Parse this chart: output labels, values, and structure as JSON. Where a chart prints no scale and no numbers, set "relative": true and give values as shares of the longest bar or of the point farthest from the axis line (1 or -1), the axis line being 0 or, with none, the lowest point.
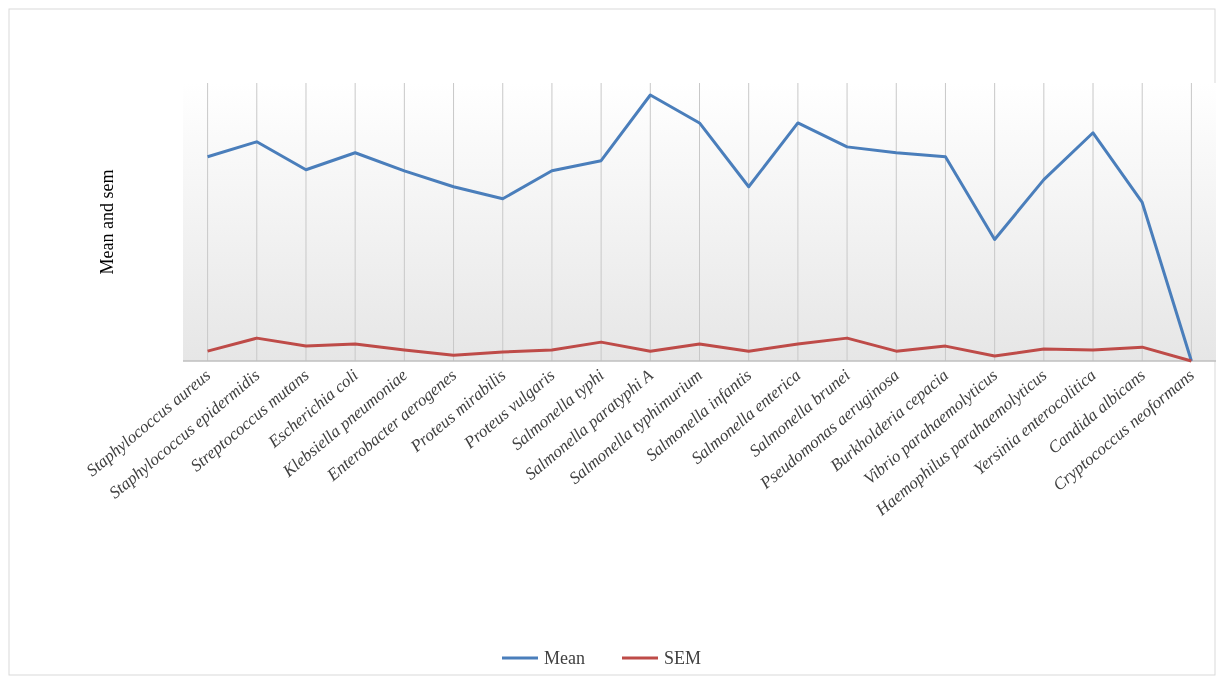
{
  "chart_data": {
    "type": "line",
    "ylabel": "Mean and sem",
    "relative": true,
    "grid": "x",
    "legend": "bottom",
    "marker": "none",
    "line_style": "solid",
    "categories": [
      "Staphylococcus aureus",
      "Staphylococcus epidermidis",
      "Streptococcus mutans",
      "Escherichia coli",
      "Klebsiella pneumoniae",
      "Enterobacter aerogenes",
      "Proteus mirabilis",
      "Proteus vulgaris",
      "Salmonella typhi",
      "Salmonella paratyphi A",
      "Salmonella typhimurium",
      "Salmonella infantis",
      "Salmonella enterica",
      "Salmonella brunei",
      "Pseudomonas aeruginosa",
      "Burkholderia cepacia",
      "Vibrio parahaemolyticus",
      "Haemophilus parahaemolyticus",
      "Yersinia enterocolitica",
      "Candida albicans",
      "Cryptococcus neoformans"
    ],
    "series": [
      {
        "name": "Mean",
        "color": "#4a7ebb",
        "values": [
          0.768,
          0.824,
          0.719,
          0.783,
          0.715,
          0.655,
          0.61,
          0.715,
          0.753,
          1,
          0.895,
          0.655,
          0.895,
          0.805,
          0.783,
          0.768,
          0.457,
          0.682,
          0.858,
          0.596,
          0
        ]
      },
      {
        "name": "SEM",
        "color": "#be4b48",
        "values": [
          0.037,
          0.086,
          0.056,
          0.064,
          0.041,
          0.022,
          0.034,
          0.041,
          0.071,
          0.037,
          0.064,
          0.037,
          0.064,
          0.086,
          0.037,
          0.056,
          0.019,
          0.045,
          0.041,
          0.052,
          0
        ]
      }
    ]
  }
}
